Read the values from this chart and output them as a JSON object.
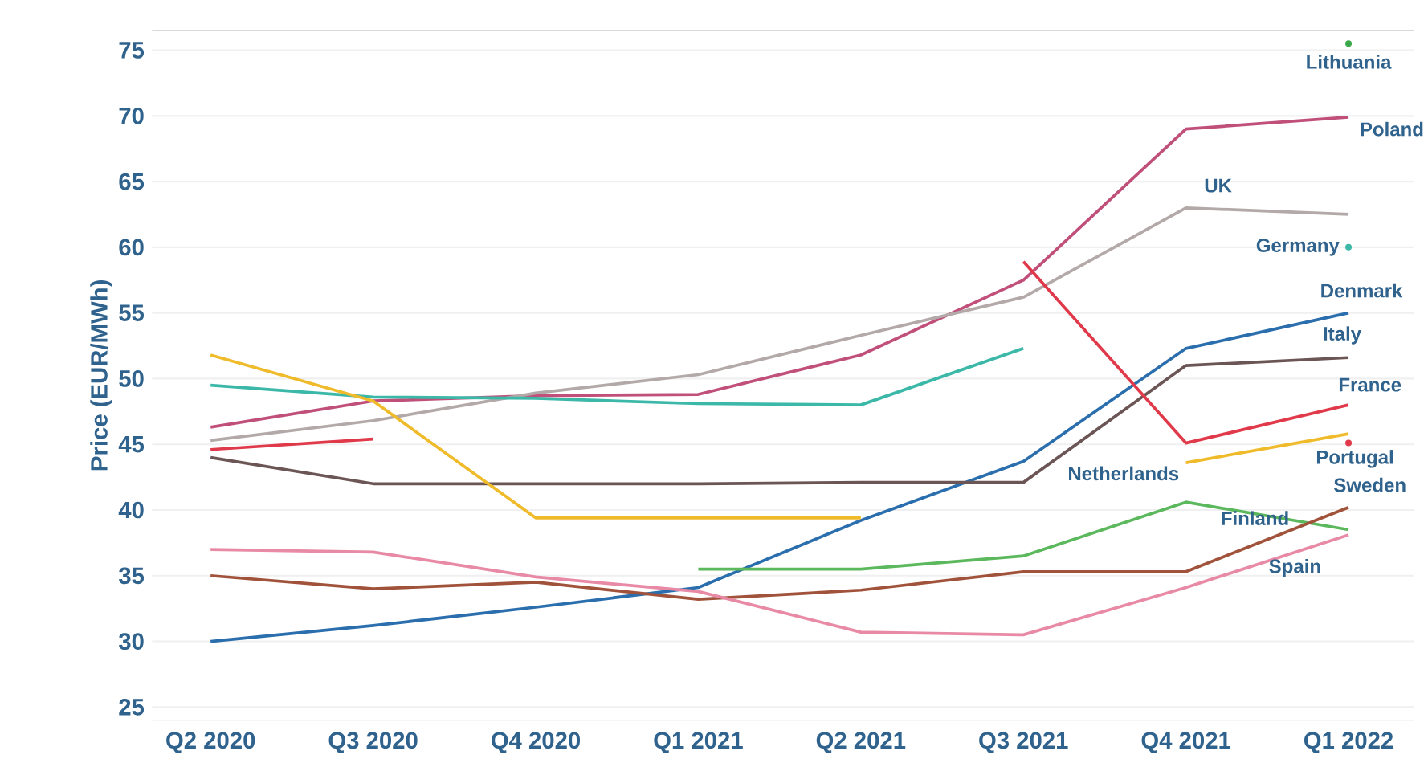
{
  "chart_data": {
    "type": "line",
    "ylabel": "Price (EUR/MWh)",
    "categories": [
      "Q2 2020",
      "Q3 2020",
      "Q4 2020",
      "Q1 2021",
      "Q2 2021",
      "Q3 2021",
      "Q4 2021",
      "Q1 2022"
    ],
    "ylim": [
      24,
      76.5
    ],
    "yticks": [
      25,
      30,
      35,
      40,
      45,
      50,
      55,
      60,
      65,
      70,
      75
    ],
    "grid": "y",
    "series": [
      {
        "name": "Lithuania",
        "type": "scatter",
        "color": "#3aa84a",
        "values": [
          null,
          null,
          null,
          null,
          null,
          null,
          null,
          75.5
        ]
      },
      {
        "name": "Poland",
        "color": "#c0507a",
        "values": [
          46.3,
          48.3,
          48.7,
          48.8,
          51.8,
          57.5,
          69.0,
          69.9
        ]
      },
      {
        "name": "UK",
        "color": "#b3a9a9",
        "values": [
          45.3,
          46.8,
          48.9,
          50.3,
          53.3,
          56.2,
          63.0,
          62.5
        ]
      },
      {
        "name": "Germany",
        "type": "scatter",
        "color": "#3cb8a8",
        "values": [
          null,
          null,
          null,
          null,
          null,
          null,
          null,
          60.0
        ]
      },
      {
        "color": "#3cb8a8",
        "values": [
          49.5,
          48.6,
          48.5,
          48.1,
          48.0,
          52.3,
          null,
          null
        ]
      },
      {
        "name": "Denmark",
        "color": "#2a6ead",
        "values": [
          30.0,
          31.2,
          32.6,
          34.1,
          39.2,
          43.7,
          52.3,
          55.0
        ]
      },
      {
        "name": "Italy",
        "color": "#6b5555",
        "values": [
          44.0,
          42.0,
          42.0,
          42.0,
          42.1,
          42.1,
          51.0,
          51.6
        ]
      },
      {
        "name": "France",
        "color": "#e0394a",
        "values": [
          44.6,
          45.4,
          null,
          null,
          null,
          58.9,
          45.1,
          48.0
        ]
      },
      {
        "name": "Netherlands",
        "color": "#f0bb2a",
        "values": [
          51.8,
          48.3,
          39.4,
          39.4,
          39.4,
          null,
          43.6,
          45.8
        ]
      },
      {
        "name": "Portugal",
        "type": "scatter",
        "color": "#e0394a",
        "values": [
          null,
          null,
          null,
          null,
          null,
          null,
          null,
          45.1
        ]
      },
      {
        "name": "Finland",
        "color": "#5cb85c",
        "values": [
          null,
          null,
          null,
          35.5,
          35.5,
          36.5,
          40.6,
          38.5
        ]
      },
      {
        "name": "Sweden",
        "color": "#a0523a",
        "values": [
          35.0,
          34.0,
          34.5,
          33.2,
          33.9,
          35.3,
          35.3,
          40.2
        ]
      },
      {
        "name": "Spain",
        "color": "#e88aa6",
        "values": [
          37.0,
          36.8,
          34.9,
          33.8,
          30.7,
          30.5,
          34.1,
          38.1
        ]
      }
    ]
  }
}
